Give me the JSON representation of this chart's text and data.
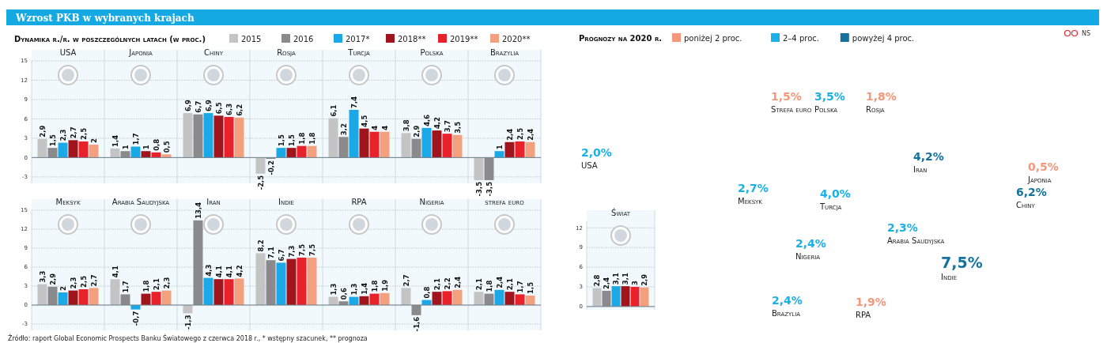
{
  "chart_data": [
    {
      "type": "other",
      "title": "Wzrost PKB w wybranych krajach",
      "annotations": [
        "Źródło: raport Global Economic Prospects Banku Światowego z czerwca 2018 r., * wstępny szacunek, ** prognoza",
        "NS"
      ]
    },
    {
      "type": "bar",
      "legend_title": "Dynamika r./r. w poszczególnych latach (w proc.)",
      "legend": "top",
      "categories": [
        "USA",
        "Japonia",
        "Chiny",
        "Rosja",
        "Turcja",
        "Polska",
        "Brazylia"
      ],
      "ylim": [
        -4,
        15
      ],
      "yticks": [
        -3,
        0,
        3,
        6,
        9,
        12,
        15
      ],
      "grid": "y",
      "series": [
        {
          "name": "2015",
          "color": "#c4c4c4",
          "values": [
            2.9,
            1.4,
            6.9,
            -2.5,
            6.1,
            3.8,
            -3.5
          ],
          "value_labels": [
            "2,9",
            "1,4",
            "6,9",
            "-2,5",
            "6,1",
            "3,8",
            "-3,5"
          ]
        },
        {
          "name": "2016",
          "color": "#8a8a8c",
          "values": [
            1.5,
            1,
            6.7,
            -0.2,
            3.2,
            2.9,
            -3.5
          ],
          "value_labels": [
            "1,5",
            "1",
            "6,7",
            "-0,2",
            "3,2",
            "2,9",
            "-3,5"
          ]
        },
        {
          "name": "2017*",
          "color": "#1aa9e6",
          "values": [
            2.3,
            1.7,
            6.9,
            1.5,
            7.4,
            4.6,
            1
          ],
          "value_labels": [
            "2,3",
            "1,7",
            "6,9",
            "1,5",
            "7,4",
            "4,6",
            "1"
          ]
        },
        {
          "name": "2018**",
          "color": "#a1141b",
          "values": [
            2.7,
            1,
            6.5,
            1.5,
            4.5,
            4.2,
            2.4
          ],
          "value_labels": [
            "2,7",
            "1",
            "6,5",
            "1,5",
            "4,5",
            "4,2",
            "2,4"
          ]
        },
        {
          "name": "2019**",
          "color": "#e8222a",
          "values": [
            2.5,
            0.8,
            6.3,
            1.8,
            4,
            3.7,
            2.5
          ],
          "value_labels": [
            "2,5",
            "0,8",
            "6,3",
            "1,8",
            "4",
            "3,7",
            "2,5"
          ]
        },
        {
          "name": "2020**",
          "color": "#f4a07e",
          "values": [
            2,
            0.5,
            6.2,
            1.8,
            4,
            3.5,
            2.4
          ],
          "value_labels": [
            "2",
            "0,5",
            "6,2",
            "1,8",
            "4",
            "3,5",
            "2,4"
          ]
        }
      ]
    },
    {
      "type": "bar",
      "categories": [
        "Meksyk",
        "Arabia Saudyjska",
        "Iran",
        "Indie",
        "RPA",
        "Nigeria",
        "strefa euro"
      ],
      "ylim": [
        -4,
        15
      ],
      "yticks": [
        -3,
        0,
        3,
        6,
        9,
        12,
        15
      ],
      "grid": "y",
      "series": [
        {
          "color": "#c4c4c4",
          "values": [
            3.3,
            4.1,
            -1.3,
            8.2,
            1.3,
            2.7,
            2.1
          ],
          "value_labels": [
            "3,3",
            "4,1",
            "-1,3",
            "8,2",
            "1,3",
            "2,7",
            "2,1"
          ]
        },
        {
          "color": "#8a8a8c",
          "values": [
            2.9,
            1.7,
            13.4,
            7.1,
            0.6,
            -1.6,
            1.8
          ],
          "value_labels": [
            "2,9",
            "1,7",
            "13,4",
            "7,1",
            "0,6",
            "-1,6",
            "1,8"
          ]
        },
        {
          "color": "#1aa9e6",
          "values": [
            2,
            -0.7,
            4.3,
            6.7,
            1.3,
            0.8,
            2.4
          ],
          "value_labels": [
            "2",
            "-0,7",
            "4,3",
            "6,7",
            "1,3",
            "0,8",
            "2,4"
          ]
        },
        {
          "color": "#a1141b",
          "values": [
            2.3,
            1.8,
            4.1,
            7.3,
            1.4,
            2.1,
            2.1
          ],
          "value_labels": [
            "2,3",
            "1,8",
            "4,1",
            "7,3",
            "1,4",
            "2,1",
            "2,1"
          ]
        },
        {
          "color": "#e8222a",
          "values": [
            2.5,
            2.1,
            4.1,
            7.5,
            1.8,
            2.2,
            1.7
          ],
          "value_labels": [
            "2,5",
            "2,1",
            "4,1",
            "7,5",
            "1,8",
            "2,2",
            "1,7"
          ]
        },
        {
          "color": "#f4a07e",
          "values": [
            2.7,
            2.3,
            4.2,
            7.5,
            1.9,
            2.4,
            1.5
          ],
          "value_labels": [
            "2,7",
            "2,3",
            "4,2",
            "7,5",
            "1,9",
            "2,4",
            "1,5"
          ]
        }
      ]
    },
    {
      "type": "other",
      "title": "Prognozy na 2020 r.",
      "legend": "top",
      "categories": [
        "Strefa euro",
        "Polska",
        "Rosja",
        "USA",
        "Iran",
        "Japonia",
        "Meksyk",
        "Turcja",
        "Chiny",
        "Arabia Saudyjska",
        "Nigeria",
        "Indie",
        "Brazylia",
        "RPA"
      ],
      "series": [
        {
          "name": "poniżej 2 proc.",
          "color": "#f4977a",
          "values": [
            1.5,
            null,
            1.8,
            null,
            null,
            0.5,
            null,
            null,
            null,
            null,
            null,
            null,
            null,
            1.9
          ],
          "value_labels": [
            "1,5%",
            null,
            "1,8%",
            null,
            null,
            "0,5%",
            null,
            null,
            null,
            null,
            null,
            null,
            null,
            "1,9%"
          ]
        },
        {
          "name": "2–4 proc.",
          "color": "#1ab0e8",
          "values": [
            null,
            3.5,
            null,
            2.0,
            null,
            null,
            2.7,
            4.0,
            null,
            2.3,
            2.4,
            null,
            2.4,
            null
          ],
          "value_labels": [
            null,
            "3,5%",
            null,
            "2,0%",
            null,
            null,
            "2,7%",
            "4,0%",
            null,
            "2,3%",
            "2,4%",
            null,
            "2,4%",
            null
          ]
        },
        {
          "name": "powyżej 4 proc.",
          "color": "#13729e",
          "values": [
            null,
            null,
            null,
            null,
            4.2,
            null,
            null,
            null,
            6.2,
            null,
            null,
            7.5,
            null,
            null
          ],
          "value_labels": [
            null,
            null,
            null,
            null,
            "4,2%",
            null,
            null,
            null,
            "6,2%",
            null,
            null,
            "7,5%",
            null,
            null
          ]
        }
      ]
    },
    {
      "type": "bar",
      "categories": [
        "Świat"
      ],
      "ylim": [
        -0.5,
        13
      ],
      "yticks": [
        0,
        3,
        6,
        9,
        12
      ],
      "grid": "y",
      "series": [
        {
          "color": "#c4c4c4",
          "values": [
            2.8
          ],
          "value_labels": [
            "2,8"
          ]
        },
        {
          "color": "#8a8a8c",
          "values": [
            2.4
          ],
          "value_labels": [
            "2,4"
          ]
        },
        {
          "color": "#1aa9e6",
          "values": [
            3.1
          ],
          "value_labels": [
            "3,1"
          ]
        },
        {
          "color": "#a1141b",
          "values": [
            3.1
          ],
          "value_labels": [
            "3,1"
          ]
        },
        {
          "color": "#e8222a",
          "values": [
            3
          ],
          "value_labels": [
            "3"
          ]
        },
        {
          "color": "#f4a07e",
          "values": [
            2.9
          ],
          "value_labels": [
            "2,9"
          ]
        }
      ]
    }
  ]
}
